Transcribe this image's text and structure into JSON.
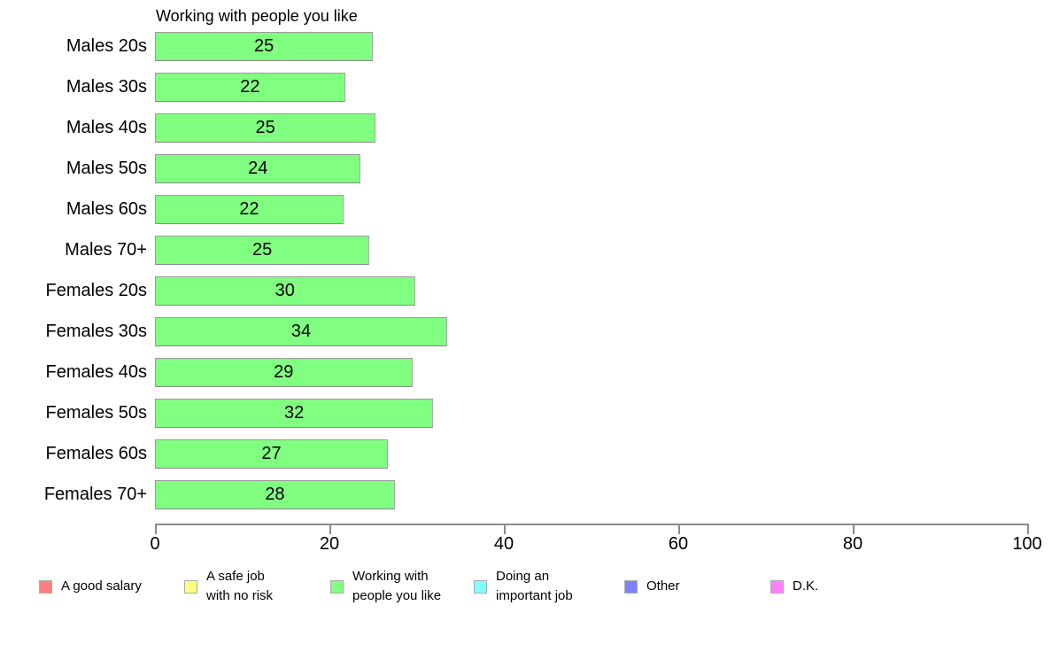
{
  "chart_data": {
    "type": "bar",
    "orientation": "horizontal",
    "title": "Working with people you like",
    "categories": [
      "Males 20s",
      "Males 30s",
      "Males 40s",
      "Males 50s",
      "Males 60s",
      "Males 70+",
      "Females 20s",
      "Females 30s",
      "Females 40s",
      "Females 50s",
      "Females 60s",
      "Females 70+"
    ],
    "values": [
      25,
      22,
      25,
      24,
      22,
      25,
      30,
      34,
      29,
      32,
      27,
      28
    ],
    "bar_lengths_estimated": [
      25.0,
      21.8,
      25.3,
      23.6,
      21.6,
      24.6,
      29.8,
      33.5,
      29.5,
      31.9,
      26.7,
      27.5
    ],
    "xlabel": "",
    "ylabel": "",
    "xlim": [
      0,
      100
    ],
    "x_ticks": [
      0,
      20,
      40,
      60,
      80,
      100
    ],
    "grid": false,
    "bar_color": "#80ff80",
    "bar_border_color": "#9c9c9c",
    "legend_position": "bottom",
    "legend": [
      {
        "label": "A good salary",
        "color": "#ff8080"
      },
      {
        "label": "A safe job\nwith no risk",
        "color": "#ffff80"
      },
      {
        "label": "Working with\npeople you like",
        "color": "#80ff80"
      },
      {
        "label": "Doing an\nimportant job",
        "color": "#80ffff"
      },
      {
        "label": "Other",
        "color": "#8080ff"
      },
      {
        "label": "D.K.",
        "color": "#ff80ff"
      }
    ]
  }
}
